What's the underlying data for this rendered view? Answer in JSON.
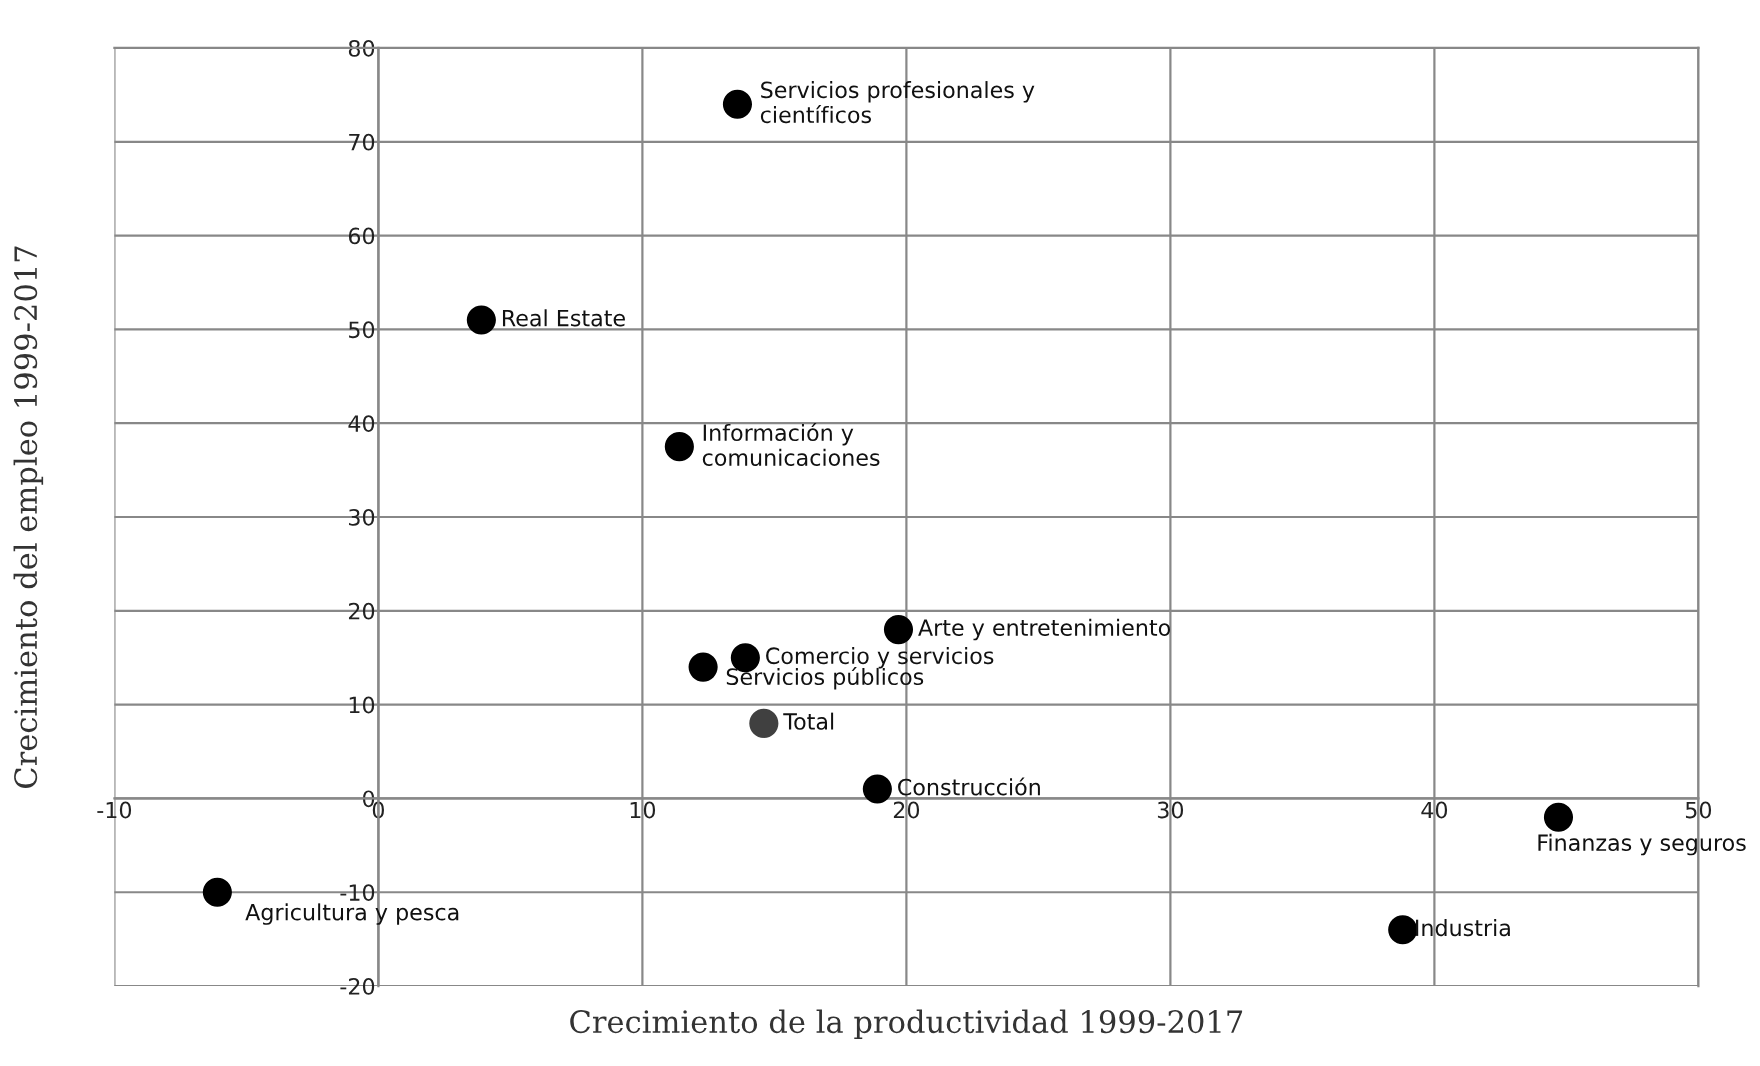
{
  "chart_data": {
    "type": "scatter",
    "xlabel": "Crecimiento de la productividad 1999-2017",
    "ylabel": "Crecimiento del empleo 1999-2017",
    "x": [
      -6.1,
      3.9,
      13.6,
      11.4,
      19.7,
      13.9,
      12.3,
      14.6,
      18.9,
      38.8,
      44.7
    ],
    "values": [
      -10,
      51,
      74,
      37.5,
      18,
      15,
      14,
      8,
      1,
      -14,
      -2
    ],
    "colors": [
      "#000000",
      "#000000",
      "#000000",
      "#000000",
      "#000000",
      "#000000",
      "#000000",
      "#404040",
      "#000000",
      "#000000",
      "#000000"
    ],
    "marker": "circle",
    "grid": true,
    "xlim": [
      -10,
      50
    ],
    "xticks": [
      -10,
      0,
      10,
      20,
      30,
      40,
      50
    ],
    "ylim": [
      -20,
      80
    ],
    "yticks": [
      -20,
      -10,
      0,
      10,
      20,
      30,
      40,
      50,
      60,
      70,
      80
    ],
    "annotations": [
      {
        "text": "Agricultura y pesca",
        "x": -6.1,
        "y": -10
      },
      {
        "text": "Real Estate",
        "x": 3.9,
        "y": 51
      },
      {
        "text": "Servicios profesionales y\ncientíficos",
        "x": 13.6,
        "y": 74
      },
      {
        "text": "Información y\ncomunicaciones",
        "x": 11.4,
        "y": 37.5
      },
      {
        "text": "Arte y entretenimiento",
        "x": 19.7,
        "y": 18
      },
      {
        "text": "Comercio y servicios",
        "x": 13.9,
        "y": 15
      },
      {
        "text": "Servicios públicos",
        "x": 12.3,
        "y": 14
      },
      {
        "text": "Total",
        "x": 14.6,
        "y": 8
      },
      {
        "text": "Construcción",
        "x": 18.9,
        "y": 1
      },
      {
        "text": "Industria",
        "x": 38.8,
        "y": -14
      },
      {
        "text": "Finanzas y seguros",
        "x": 44.7,
        "y": -2
      }
    ]
  }
}
